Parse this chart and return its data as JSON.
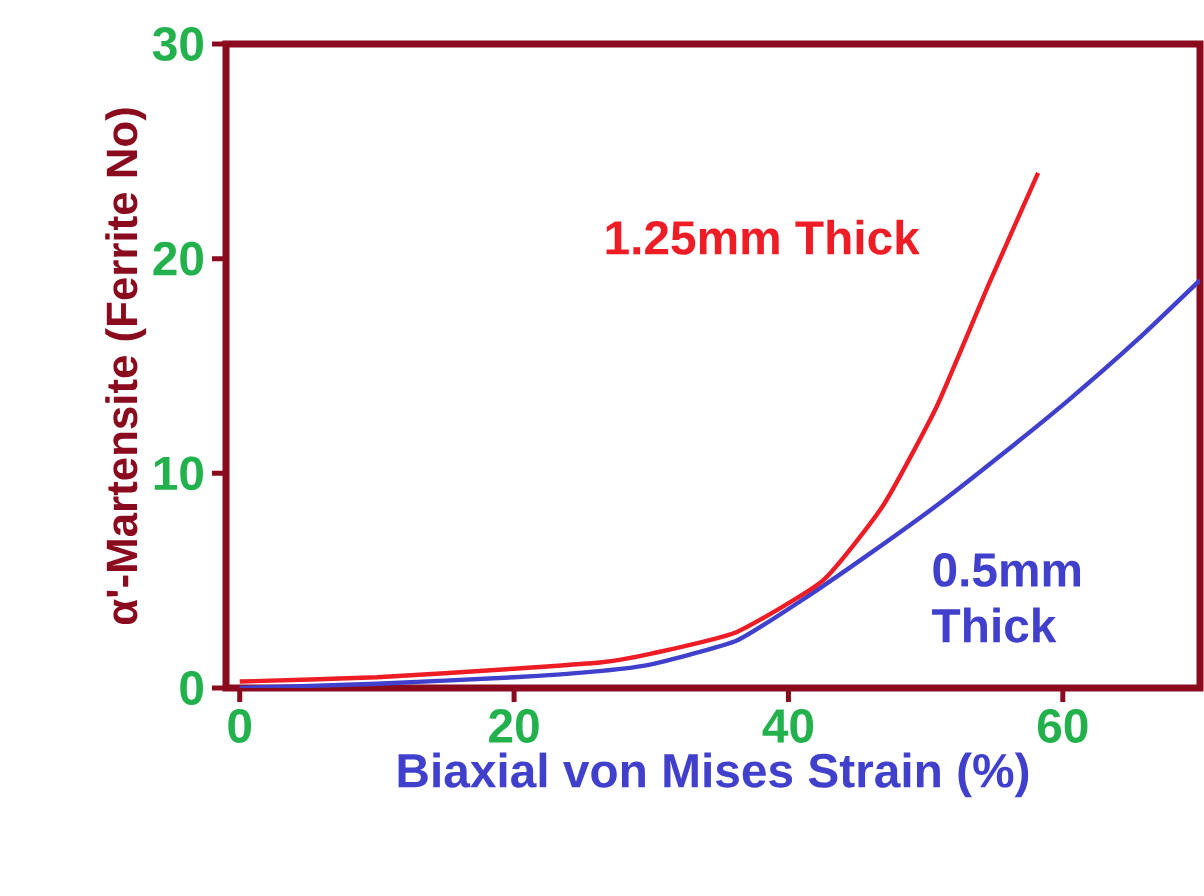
{
  "chart_data": {
    "type": "line",
    "xlabel": "Biaxial von Mises Strain (%)",
    "ylabel": "α'-Martensite (Ferrite No)",
    "xlim": [
      -1,
      70
    ],
    "ylim": [
      0,
      30
    ],
    "xticks": [
      0,
      20,
      40,
      60
    ],
    "yticks": [
      0,
      10,
      20,
      30
    ],
    "marker": "none",
    "line_style": "solid",
    "series": [
      {
        "name": "1.25mm Thick",
        "color": "#ee1c25",
        "x": [
          0,
          10,
          20,
          26.4,
          30,
          36.2,
          42.5,
          46.9,
          50.8,
          54.6,
          58.2
        ],
        "values": [
          0.3,
          0.5,
          0.9,
          1.2,
          1.6,
          2.6,
          5.0,
          8.5,
          13.1,
          18.8,
          24.0
        ]
      },
      {
        "name": "0.5mm Thick",
        "color": "#4040cc",
        "x": [
          0,
          10,
          20,
          26.4,
          30,
          36.2,
          41,
          45.8,
          50.8,
          55.6,
          60.4,
          65.4,
          70
        ],
        "values": [
          0,
          0.2,
          0.5,
          0.8,
          1.1,
          2.2,
          4.1,
          6.2,
          8.5,
          10.9,
          13.4,
          16.2,
          19.0
        ]
      }
    ]
  }
}
